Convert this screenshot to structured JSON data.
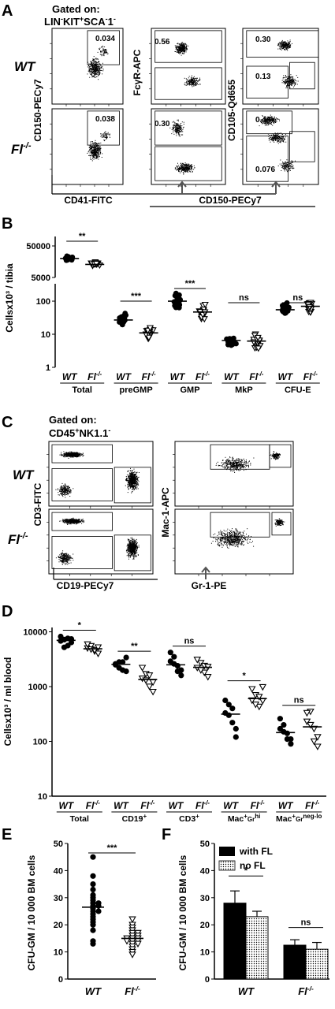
{
  "panels": {
    "A": {
      "letter": "A",
      "gate_title": "Gated on:",
      "gate_pop": "LIN-KIT+SCA-1-",
      "genotype_wt": "WT",
      "genotype_fl": "Fl-/-",
      "y_label_1": "CD150-PECy7",
      "y_label_2": "FcγR-APC",
      "y_label_3": "CD105-Qd655",
      "x_label_1": "CD41-FITC",
      "x_label_2": "CD150-PECy7",
      "gates": {
        "wt_1": "0.034",
        "fl_1": "0.038",
        "wt_2": "0.56",
        "fl_2": "0.30",
        "wt_3a": "0.30",
        "wt_3b": "0.13",
        "fl_3a": "0.44",
        "fl_3b": "0.076"
      }
    },
    "B": {
      "letter": "B",
      "ylabel": "Cellsx10³ / tibia",
      "yticks_top": [
        "50000",
        "5000"
      ],
      "yticks_bottom": [
        "100",
        "10",
        "1"
      ],
      "groups": [
        {
          "name": "Total",
          "wt": "WT",
          "fl": "Fl-/-",
          "sig": "**"
        },
        {
          "name": "preGMP",
          "wt": "WT",
          "fl": "Fl-/-",
          "sig": "***"
        },
        {
          "name": "GMP",
          "wt": "WT",
          "fl": "Fl-/-",
          "sig": "***"
        },
        {
          "name": "MkP",
          "wt": "WT",
          "fl": "Fl-/-",
          "sig": "ns"
        },
        {
          "name": "CFU-E",
          "wt": "WT",
          "fl": "Fl-/-",
          "sig": "ns"
        }
      ]
    },
    "C": {
      "letter": "C",
      "gate_title": "Gated on:",
      "gate_pop": "CD45+NK1.1-",
      "genotype_wt": "WT",
      "genotype_fl": "Fl-/-",
      "y_label_1": "CD3-FITC",
      "y_label_2": "Mac-1-APC",
      "x_label_1": "CD19-PECy7",
      "x_label_2": "Gr-1-PE"
    },
    "D": {
      "letter": "D",
      "ylabel": "Cellsx10³ / ml blood",
      "yticks": [
        "10000",
        "1000",
        "100",
        "10"
      ],
      "groups": [
        {
          "name": "Total",
          "wt": "WT",
          "fl": "Fl-/-",
          "sig": "*"
        },
        {
          "name": "CD19+",
          "wt": "WT",
          "fl": "Fl-/-",
          "sig": "**"
        },
        {
          "name": "CD3+",
          "wt": "WT",
          "fl": "Fl-/-",
          "sig": "ns"
        },
        {
          "name": "Mac+Grhi",
          "wt": "WT",
          "fl": "Fl-/-",
          "sig": "*"
        },
        {
          "name": "Mac+Grneg-lo",
          "wt": "WT",
          "fl": "Fl-/-",
          "sig": "ns"
        }
      ]
    },
    "E": {
      "letter": "E",
      "ylabel": "CFU-GM / 10 000 BM cells",
      "yticks": [
        "50",
        "40",
        "30",
        "20",
        "10",
        "0"
      ],
      "xcats": [
        "WT",
        "Fl-/-"
      ],
      "sig": "***"
    },
    "F": {
      "letter": "F",
      "ylabel": "CFU-GM / 10 000 BM cells",
      "yticks": [
        "50",
        "40",
        "30",
        "20",
        "10",
        "0"
      ],
      "xcats": [
        "WT",
        "Fl-/-"
      ],
      "legend": [
        "with  FL",
        "no  FL"
      ],
      "sig_wt": "*",
      "sig_fl": "ns"
    }
  },
  "chart_data": [
    {
      "type": "scatter",
      "panel": "B",
      "ylabel": "Cellsx10³ / tibia",
      "yscale": "log",
      "categories": [
        "Total",
        "preGMP",
        "GMP",
        "MkP",
        "CFU-E"
      ],
      "series": [
        {
          "name": "WT",
          "median": [
            20000,
            27,
            100,
            6.5,
            55
          ]
        },
        {
          "name": "Fl-/-",
          "median": [
            13000,
            11,
            47,
            6.2,
            70
          ]
        }
      ]
    },
    {
      "type": "scatter",
      "panel": "D",
      "ylabel": "Cellsx10³ / ml blood",
      "yscale": "log",
      "ylim": [
        10,
        10000
      ],
      "categories": [
        "Total",
        "CD19+",
        "CD3+",
        "Mac+Grhi",
        "Mac+Grneg-lo"
      ],
      "series": [
        {
          "name": "WT",
          "values": [
            [
              6800,
              7200,
              5600,
              7400,
              8200,
              5200,
              7600,
              6400
            ],
            [
              2500,
              2800,
              2000,
              3400,
              2600,
              2200,
              2800,
              1900
            ],
            [
              2900,
              3500,
              1900,
              1600,
              4200,
              2600,
              2400,
              2000
            ],
            [
              330,
              470,
              220,
              170,
              560,
              300,
              400,
              120
            ],
            [
              170,
              200,
              110,
              90,
              260,
              150,
              140,
              110
            ]
          ]
        },
        {
          "name": "Fl-/-",
          "values": [
            [
              5000,
              5500,
              4400,
              4000,
              5900,
              4800,
              4600,
              5200
            ],
            [
              1400,
              1700,
              1000,
              800,
              2200,
              1300,
              1600,
              1200
            ],
            [
              2200,
              2700,
              1800,
              1500,
              3100,
              2000,
              2400,
              2300
            ],
            [
              560,
              700,
              430,
              980,
              900,
              470,
              650,
              550
            ],
            [
              230,
              350,
              100,
              80,
              330,
              200,
              170,
              120
            ]
          ]
        }
      ]
    },
    {
      "type": "scatter",
      "panel": "E",
      "ylabel": "CFU-GM / 10 000 BM cells",
      "ylim": [
        0,
        50
      ],
      "categories": [
        "WT",
        "Fl-/-"
      ],
      "values": [
        [
          45,
          38,
          35,
          33,
          31,
          30,
          29,
          28,
          28,
          27,
          27,
          26,
          25,
          25,
          24,
          23,
          22,
          21,
          20,
          18,
          14,
          13
        ],
        [
          22,
          20,
          19,
          18,
          17,
          17,
          16,
          16,
          15,
          15,
          15,
          14,
          14,
          14,
          13,
          13,
          12,
          11,
          10,
          9
        ]
      ],
      "medians": [
        26.5,
        15
      ]
    },
    {
      "type": "bar",
      "panel": "F",
      "ylabel": "CFU-GM / 10 000 BM cells",
      "ylim": [
        0,
        50
      ],
      "categories": [
        "WT",
        "Fl-/-"
      ],
      "series": [
        {
          "name": "with  FL",
          "values": [
            28,
            12.5
          ],
          "errors": [
            4.5,
            2
          ]
        },
        {
          "name": "no  FL",
          "values": [
            23,
            11
          ],
          "errors": [
            2,
            2.5
          ]
        }
      ]
    }
  ]
}
